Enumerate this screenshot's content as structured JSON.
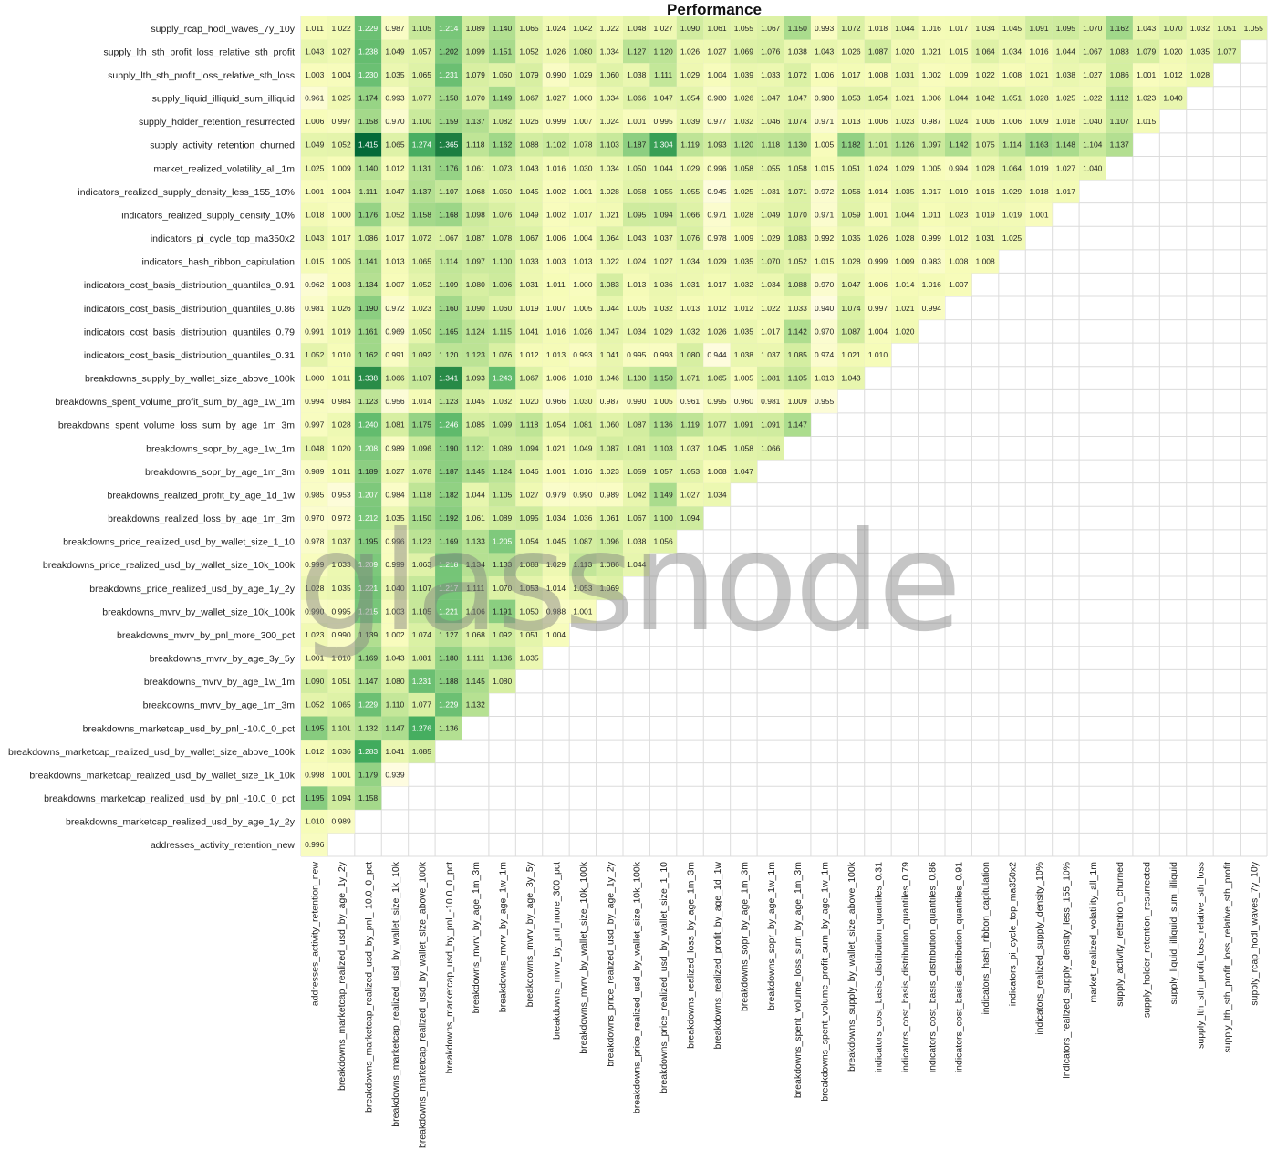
{
  "chart_data": {
    "type": "heatmap",
    "title": "Performance",
    "watermark": "glassnode",
    "labels": [
      "addresses_activity_retention_new",
      "breakdowns_marketcap_realized_usd_by_age_1y_2y",
      "breakdowns_marketcap_realized_usd_by_pnl_-10.0_0_pct",
      "breakdowns_marketcap_realized_usd_by_wallet_size_1k_10k",
      "breakdowns_marketcap_realized_usd_by_wallet_size_above_100k",
      "breakdowns_marketcap_usd_by_pnl_-10.0_0_pct",
      "breakdowns_mvrv_by_age_1m_3m",
      "breakdowns_mvrv_by_age_1w_1m",
      "breakdowns_mvrv_by_age_3y_5y",
      "breakdowns_mvrv_by_pnl_more_300_pct",
      "breakdowns_mvrv_by_wallet_size_10k_100k",
      "breakdowns_price_realized_usd_by_age_1y_2y",
      "breakdowns_price_realized_usd_by_wallet_size_10k_100k",
      "breakdowns_price_realized_usd_by_wallet_size_1_10",
      "breakdowns_realized_loss_by_age_1m_3m",
      "breakdowns_realized_profit_by_age_1d_1w",
      "breakdowns_sopr_by_age_1m_3m",
      "breakdowns_sopr_by_age_1w_1m",
      "breakdowns_spent_volume_loss_sum_by_age_1m_3m",
      "breakdowns_spent_volume_profit_sum_by_age_1w_1m",
      "breakdowns_supply_by_wallet_size_above_100k",
      "indicators_cost_basis_distribution_quantiles_0.31",
      "indicators_cost_basis_distribution_quantiles_0.79",
      "indicators_cost_basis_distribution_quantiles_0.86",
      "indicators_cost_basis_distribution_quantiles_0.91",
      "indicators_hash_ribbon_capitulation",
      "indicators_pi_cycle_top_ma350x2",
      "indicators_realized_supply_density_10%",
      "indicators_realized_supply_density_less_155_10%",
      "market_realized_volatility_all_1m",
      "supply_activity_retention_churned",
      "supply_holder_retention_resurrected",
      "supply_liquid_illiquid_sum_illiquid",
      "supply_lth_sth_profit_loss_relative_sth_loss",
      "supply_lth_sth_profit_loss_relative_sth_profit",
      "supply_rcap_hodl_waves_7y_10y"
    ],
    "rows": [
      [
        0.996
      ],
      [
        1.01,
        0.989
      ],
      [
        1.195,
        1.094,
        1.158
      ],
      [
        0.998,
        1.001,
        1.179,
        0.939
      ],
      [
        1.012,
        1.036,
        1.283,
        1.041,
        1.085
      ],
      [
        1.195,
        1.101,
        1.132,
        1.147,
        1.276,
        1.136
      ],
      [
        1.052,
        1.065,
        1.229,
        1.11,
        1.077,
        1.229,
        1.132
      ],
      [
        1.09,
        1.051,
        1.147,
        1.08,
        1.231,
        1.188,
        1.145,
        1.08
      ],
      [
        1.001,
        1.01,
        1.169,
        1.043,
        1.081,
        1.18,
        1.111,
        1.136,
        1.035
      ],
      [
        1.023,
        0.99,
        1.139,
        1.002,
        1.074,
        1.127,
        1.068,
        1.092,
        1.051,
        1.004
      ],
      [
        0.99,
        0.995,
        1.215,
        1.003,
        1.105,
        1.221,
        1.106,
        1.191,
        1.05,
        0.988,
        1.001
      ],
      [
        1.028,
        1.035,
        1.221,
        1.04,
        1.107,
        1.217,
        1.111,
        1.07,
        1.053,
        1.014,
        1.053,
        1.069
      ],
      [
        0.999,
        1.033,
        1.209,
        0.999,
        1.063,
        1.218,
        1.134,
        1.133,
        1.088,
        1.029,
        1.113,
        1.086,
        1.044
      ],
      [
        0.978,
        1.037,
        1.195,
        0.996,
        1.123,
        1.169,
        1.133,
        1.205,
        1.054,
        1.045,
        1.087,
        1.096,
        1.038,
        1.056
      ],
      [
        0.97,
        0.972,
        1.212,
        1.035,
        1.15,
        1.192,
        1.061,
        1.089,
        1.095,
        1.034,
        1.036,
        1.061,
        1.067,
        1.1,
        1.094
      ],
      [
        0.985,
        0.953,
        1.207,
        0.984,
        1.118,
        1.182,
        1.044,
        1.105,
        1.027,
        0.979,
        0.99,
        0.989,
        1.042,
        1.149,
        1.027,
        1.034
      ],
      [
        0.989,
        1.011,
        1.189,
        1.027,
        1.078,
        1.187,
        1.145,
        1.124,
        1.046,
        1.001,
        1.016,
        1.023,
        1.059,
        1.057,
        1.053,
        1.008,
        1.047
      ],
      [
        1.048,
        1.02,
        1.208,
        0.989,
        1.096,
        1.19,
        1.121,
        1.089,
        1.094,
        1.021,
        1.049,
        1.087,
        1.081,
        1.103,
        1.037,
        1.045,
        1.058,
        1.066
      ],
      [
        0.997,
        1.028,
        1.24,
        1.081,
        1.175,
        1.246,
        1.085,
        1.099,
        1.118,
        1.054,
        1.081,
        1.06,
        1.087,
        1.136,
        1.119,
        1.077,
        1.091,
        1.091,
        1.147
      ],
      [
        0.994,
        0.984,
        1.123,
        0.956,
        1.014,
        1.123,
        1.045,
        1.032,
        1.02,
        0.966,
        1.03,
        0.987,
        0.99,
        1.005,
        0.961,
        0.995,
        0.96,
        0.981,
        1.009,
        0.955
      ],
      [
        1.0,
        1.011,
        1.338,
        1.066,
        1.107,
        1.341,
        1.093,
        1.243,
        1.067,
        1.006,
        1.018,
        1.046,
        1.1,
        1.15,
        1.071,
        1.065,
        1.005,
        1.081,
        1.105,
        1.013,
        1.043
      ],
      [
        1.052,
        1.01,
        1.162,
        0.991,
        1.092,
        1.12,
        1.123,
        1.076,
        1.012,
        1.013,
        0.993,
        1.041,
        0.995,
        0.993,
        1.08,
        0.944,
        1.038,
        1.037,
        1.085,
        0.974,
        1.021,
        1.01
      ],
      [
        0.991,
        1.019,
        1.161,
        0.969,
        1.05,
        1.165,
        1.124,
        1.115,
        1.041,
        1.016,
        1.026,
        1.047,
        1.034,
        1.029,
        1.032,
        1.026,
        1.035,
        1.017,
        1.142,
        0.97,
        1.087,
        1.004,
        1.02
      ],
      [
        0.981,
        1.026,
        1.19,
        0.972,
        1.023,
        1.16,
        1.09,
        1.06,
        1.019,
        1.007,
        1.005,
        1.044,
        1.005,
        1.032,
        1.013,
        1.012,
        1.012,
        1.022,
        1.033,
        0.94,
        1.074,
        0.997,
        1.021,
        0.994
      ],
      [
        0.962,
        1.003,
        1.134,
        1.007,
        1.052,
        1.109,
        1.08,
        1.096,
        1.031,
        1.011,
        1.0,
        1.083,
        1.013,
        1.036,
        1.031,
        1.017,
        1.032,
        1.034,
        1.088,
        0.97,
        1.047,
        1.006,
        1.014,
        1.016,
        1.007
      ],
      [
        1.015,
        1.005,
        1.141,
        1.013,
        1.065,
        1.114,
        1.097,
        1.1,
        1.033,
        1.003,
        1.013,
        1.022,
        1.024,
        1.027,
        1.034,
        1.029,
        1.035,
        1.07,
        1.052,
        1.015,
        1.028,
        0.999,
        1.009,
        0.983,
        1.008,
        1.008
      ],
      [
        1.043,
        1.017,
        1.086,
        1.017,
        1.072,
        1.067,
        1.087,
        1.078,
        1.067,
        1.006,
        1.004,
        1.064,
        1.043,
        1.037,
        1.076,
        0.978,
        1.009,
        1.029,
        1.083,
        0.992,
        1.035,
        1.026,
        1.028,
        0.999,
        1.012,
        1.031,
        1.025
      ],
      [
        1.018,
        1.0,
        1.176,
        1.052,
        1.158,
        1.168,
        1.098,
        1.076,
        1.049,
        1.002,
        1.017,
        1.021,
        1.095,
        1.094,
        1.066,
        0.971,
        1.028,
        1.049,
        1.07,
        0.971,
        1.059,
        1.001,
        1.044,
        1.011,
        1.023,
        1.019,
        1.019,
        1.001
      ],
      [
        1.001,
        1.004,
        1.111,
        1.047,
        1.137,
        1.107,
        1.068,
        1.05,
        1.045,
        1.002,
        1.001,
        1.028,
        1.058,
        1.055,
        1.055,
        0.945,
        1.025,
        1.031,
        1.071,
        0.972,
        1.056,
        1.014,
        1.035,
        1.017,
        1.019,
        1.016,
        1.029,
        1.018,
        1.017
      ],
      [
        1.025,
        1.009,
        1.14,
        1.012,
        1.131,
        1.176,
        1.061,
        1.073,
        1.043,
        1.016,
        1.03,
        1.034,
        1.05,
        1.044,
        1.029,
        0.996,
        1.058,
        1.055,
        1.058,
        1.015,
        1.051,
        1.024,
        1.029,
        1.005,
        0.994,
        1.028,
        1.064,
        1.019,
        1.027,
        1.04
      ],
      [
        1.049,
        1.052,
        1.415,
        1.065,
        1.274,
        1.365,
        1.118,
        1.162,
        1.088,
        1.102,
        1.078,
        1.103,
        1.187,
        1.304,
        1.119,
        1.093,
        1.12,
        1.118,
        1.13,
        1.005,
        1.182,
        1.101,
        1.126,
        1.097,
        1.142,
        1.075,
        1.114,
        1.163,
        1.148,
        1.104,
        1.137
      ],
      [
        1.006,
        0.997,
        1.158,
        0.97,
        1.1,
        1.159,
        1.137,
        1.082,
        1.026,
        0.999,
        1.007,
        1.024,
        1.001,
        0.995,
        1.039,
        0.977,
        1.032,
        1.046,
        1.074,
        0.971,
        1.013,
        1.006,
        1.023,
        0.987,
        1.024,
        1.006,
        1.006,
        1.009,
        1.018,
        1.04,
        1.107,
        1.015
      ],
      [
        0.961,
        1.025,
        1.174,
        0.993,
        1.077,
        1.158,
        1.07,
        1.149,
        1.067,
        1.027,
        1.0,
        1.034,
        1.066,
        1.047,
        1.054,
        0.98,
        1.026,
        1.047,
        1.047,
        0.98,
        1.053,
        1.054,
        1.021,
        1.006,
        1.044,
        1.042,
        1.051,
        1.028,
        1.025,
        1.022,
        1.112,
        1.023,
        1.04
      ],
      [
        1.003,
        1.004,
        1.23,
        1.035,
        1.065,
        1.231,
        1.079,
        1.06,
        1.079,
        0.99,
        1.029,
        1.06,
        1.038,
        1.111,
        1.029,
        1.004,
        1.039,
        1.033,
        1.072,
        1.006,
        1.017,
        1.008,
        1.031,
        1.002,
        1.009,
        1.022,
        1.008,
        1.021,
        1.038,
        1.027,
        1.086,
        1.001,
        1.012,
        1.028
      ],
      [
        1.043,
        1.027,
        1.238,
        1.049,
        1.057,
        1.202,
        1.099,
        1.151,
        1.052,
        1.026,
        1.08,
        1.034,
        1.127,
        1.12,
        1.026,
        1.027,
        1.069,
        1.076,
        1.038,
        1.043,
        1.026,
        1.087,
        1.02,
        1.021,
        1.015,
        1.064,
        1.034,
        1.016,
        1.044,
        1.067,
        1.083,
        1.079,
        1.02,
        1.035,
        1.077
      ],
      [
        1.011,
        1.022,
        1.229,
        0.987,
        1.105,
        1.214,
        1.089,
        1.14,
        1.065,
        1.024,
        1.042,
        1.022,
        1.048,
        1.027,
        1.09,
        1.061,
        1.055,
        1.067,
        1.15,
        0.993,
        1.072,
        1.018,
        1.044,
        1.016,
        1.017,
        1.034,
        1.045,
        1.091,
        1.095,
        1.07,
        1.162,
        1.043,
        1.07,
        1.032,
        1.051,
        1.055
      ]
    ],
    "value_range": [
      0.94,
      1.42
    ],
    "colormap": [
      "#fefce0",
      "#f7fcb9",
      "#d9f0a3",
      "#addd8e",
      "#78c679",
      "#41ab5d",
      "#238443",
      "#006837"
    ],
    "grid": true
  }
}
